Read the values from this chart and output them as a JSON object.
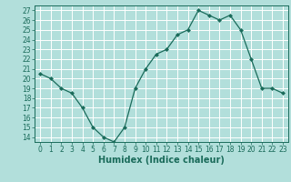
{
  "x": [
    0,
    1,
    2,
    3,
    4,
    5,
    6,
    7,
    8,
    9,
    10,
    11,
    12,
    13,
    14,
    15,
    16,
    17,
    18,
    19,
    20,
    21,
    22,
    23
  ],
  "y": [
    20.5,
    20.0,
    19.0,
    18.5,
    17.0,
    15.0,
    14.0,
    13.5,
    15.0,
    19.0,
    21.0,
    22.5,
    23.0,
    24.5,
    25.0,
    27.0,
    26.5,
    26.0,
    26.5,
    25.0,
    22.0,
    19.0,
    19.0,
    18.5
  ],
  "line_color": "#1a6b5a",
  "marker_color": "#1a6b5a",
  "bg_color": "#b2dfdb",
  "grid_color": "#ffffff",
  "xlabel": "Humidex (Indice chaleur)",
  "xlabel_fontsize": 7,
  "tick_fontsize": 5.5,
  "ylim": [
    13.5,
    27.5
  ],
  "yticks": [
    14,
    15,
    16,
    17,
    18,
    19,
    20,
    21,
    22,
    23,
    24,
    25,
    26,
    27
  ],
  "xlim": [
    -0.5,
    23.5
  ],
  "xticks": [
    0,
    1,
    2,
    3,
    4,
    5,
    6,
    7,
    8,
    9,
    10,
    11,
    12,
    13,
    14,
    15,
    16,
    17,
    18,
    19,
    20,
    21,
    22,
    23
  ]
}
